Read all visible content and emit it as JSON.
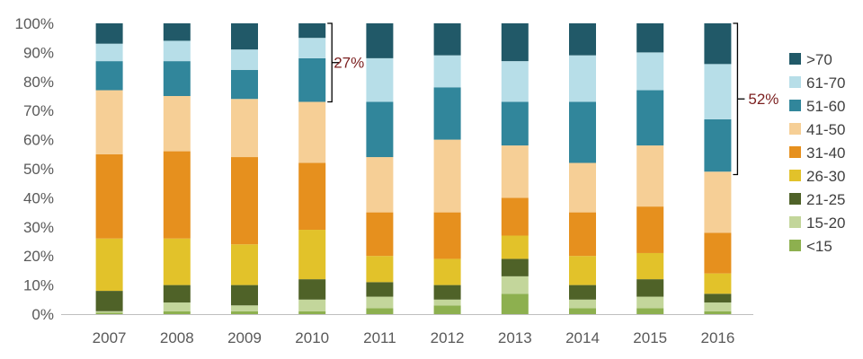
{
  "chart_data": {
    "type": "bar",
    "stacked": true,
    "title": "",
    "xlabel": "",
    "ylabel": "",
    "ylim": [
      0,
      100
    ],
    "y_ticks": [
      "0%",
      "10%",
      "20%",
      "30%",
      "40%",
      "50%",
      "60%",
      "70%",
      "80%",
      "90%",
      "100%"
    ],
    "categories": [
      "2007",
      "2008",
      "2009",
      "2010",
      "2011",
      "2012",
      "2013",
      "2014",
      "2015",
      "2016"
    ],
    "series": [
      {
        "name": "<15",
        "color": "#8db04f",
        "values": [
          0.5,
          1,
          1,
          1,
          2,
          3,
          7,
          2,
          2,
          1
        ]
      },
      {
        "name": "15-20",
        "color": "#c3d69b",
        "values": [
          0.5,
          3,
          2,
          4,
          4,
          2,
          6,
          3,
          4,
          3
        ]
      },
      {
        "name": "21-25",
        "color": "#4f6228",
        "values": [
          7,
          6,
          7,
          7,
          5,
          5,
          6,
          5,
          6,
          3
        ]
      },
      {
        "name": "26-30",
        "color": "#e2c22a",
        "values": [
          18,
          16,
          14,
          17,
          9,
          9,
          8,
          10,
          9,
          7
        ]
      },
      {
        "name": "31-40",
        "color": "#e6901e",
        "values": [
          29,
          30,
          30,
          23,
          15,
          16,
          13,
          15,
          16,
          14
        ]
      },
      {
        "name": "41-50",
        "color": "#f6cf96",
        "values": [
          22,
          19,
          20,
          21,
          19,
          25,
          18,
          17,
          21,
          21
        ]
      },
      {
        "name": "51-60",
        "color": "#31869b",
        "values": [
          10,
          12,
          10,
          15,
          19,
          18,
          15,
          21,
          19,
          18
        ]
      },
      {
        "name": "61-70",
        "color": "#b7dee8",
        "values": [
          6,
          7,
          7,
          7,
          15,
          11,
          14,
          16,
          13,
          19
        ]
      },
      {
        "name": ">70",
        "color": "#215968",
        "values": [
          7,
          6,
          9,
          5,
          12,
          11,
          13,
          11,
          10,
          14
        ]
      }
    ],
    "annotations": [
      {
        "label": "27%",
        "category": "2010",
        "from": 73,
        "to": 100
      },
      {
        "label": "52%",
        "category": "2016",
        "from": 48,
        "to": 100
      }
    ],
    "legend_position": "right",
    "annotation_color": "#7b1f1f",
    "axis_color": "#bfbfbf"
  }
}
